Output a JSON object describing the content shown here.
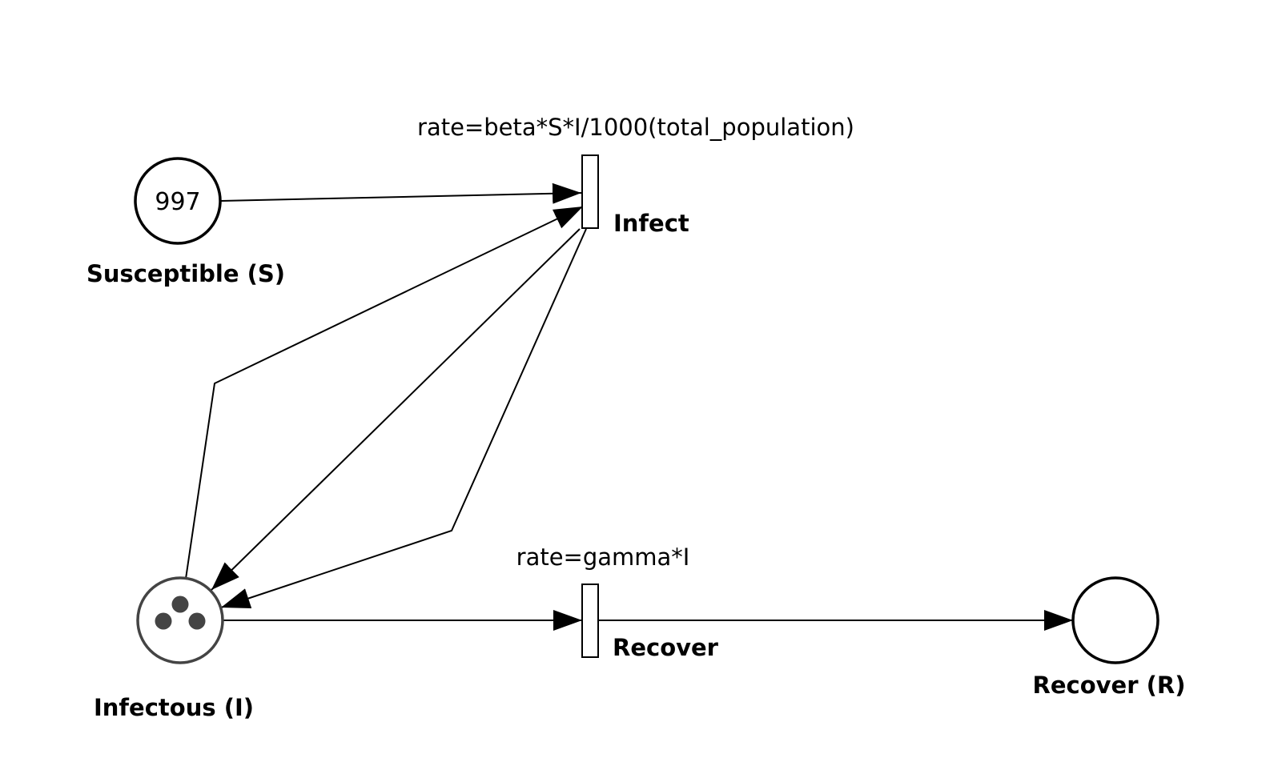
{
  "places": {
    "susceptible": {
      "label": "Susceptible (S)",
      "tokens": "997"
    },
    "infectious": {
      "label": "Infectous (I)",
      "token_count": 3
    },
    "recovered": {
      "label": "Recover (R)"
    }
  },
  "transitions": {
    "infect": {
      "label": "Infect",
      "rate": "rate=beta*S*I/1000(total_population)"
    },
    "recover": {
      "label": "Recover",
      "rate": "rate=gamma*I"
    }
  },
  "colors": {
    "stroke": "#000000",
    "infectious_place": "#444444",
    "token": "#444444"
  }
}
